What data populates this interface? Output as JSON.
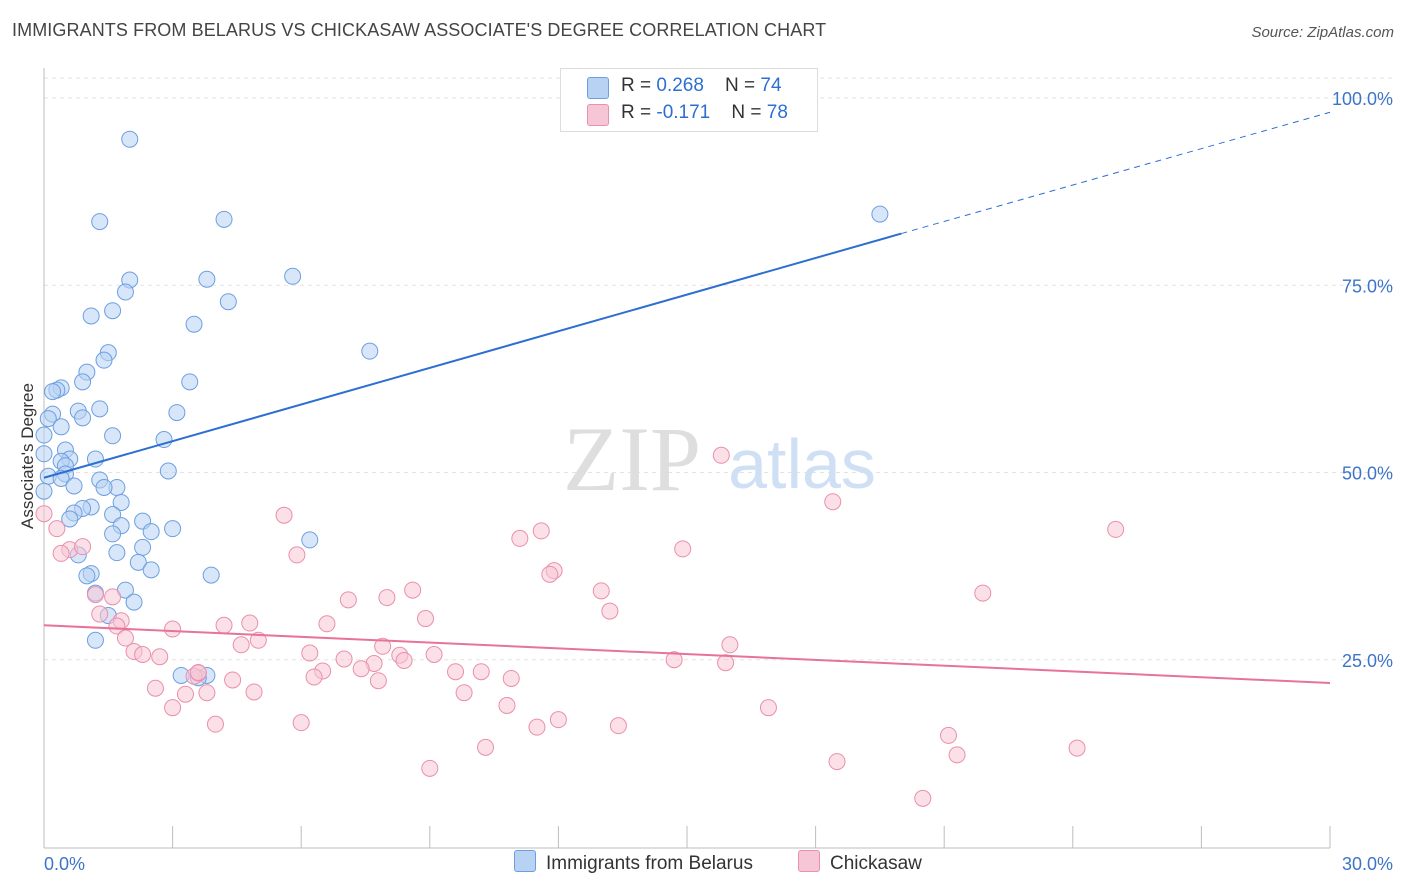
{
  "header": {
    "title": "IMMIGRANTS FROM BELARUS VS CHICKASAW ASSOCIATE'S DEGREE CORRELATION CHART",
    "source": "Source: ZipAtlas.com"
  },
  "watermark": {
    "zip": "ZIP",
    "atlas": "atlas"
  },
  "legend_top": [
    {
      "r_label": "R = ",
      "r_value": "0.268",
      "n_label": "N = ",
      "n_value": "74"
    },
    {
      "r_label": "R = ",
      "r_value": "-0.171",
      "n_label": "N = ",
      "n_value": "78"
    }
  ],
  "legend_bottom": [
    {
      "label": "Immigrants from Belarus"
    },
    {
      "label": "Chickasaw"
    }
  ],
  "colors": {
    "blue_fill": "#b8d2f4",
    "blue_stroke": "#6d9fe0",
    "blue_line": "#2d6fd0",
    "pink_fill": "#f7c6d6",
    "pink_stroke": "#ea8fac",
    "pink_line": "#e8729a",
    "tick_label": "#3d74c9",
    "grid": "#e3e3e3"
  },
  "chart_data": {
    "type": "scatter",
    "title": "IMMIGRANTS FROM BELARUS VS CHICKASAW ASSOCIATE'S DEGREE CORRELATION CHART",
    "xlabel": "",
    "ylabel": "Associate's Degree",
    "xlim": [
      0,
      30
    ],
    "ylim": [
      0,
      105
    ],
    "x_tick_labels": [
      "0.0%",
      "30.0%"
    ],
    "y_ticks": [
      25,
      50,
      75,
      100
    ],
    "y_tick_labels": [
      "25.0%",
      "50.0%",
      "75.0%",
      "100.0%"
    ],
    "grid": true,
    "legend_placement": "top-center",
    "series": [
      {
        "name": "Immigrants from Belarus",
        "R": 0.268,
        "N": 74,
        "trend": {
          "x": [
            0,
            20.0,
            30.0
          ],
          "y": [
            49.3,
            81.9,
            98.1
          ],
          "dashed_from_x": 20.0
        },
        "points": [
          [
            2.0,
            94.5
          ],
          [
            1.3,
            83.5
          ],
          [
            4.2,
            83.8
          ],
          [
            2.0,
            75.7
          ],
          [
            1.9,
            74.1
          ],
          [
            3.8,
            75.8
          ],
          [
            5.8,
            76.2
          ],
          [
            4.3,
            72.8
          ],
          [
            1.6,
            71.6
          ],
          [
            1.1,
            70.9
          ],
          [
            3.5,
            69.8
          ],
          [
            7.6,
            66.2
          ],
          [
            1.5,
            66.0
          ],
          [
            1.4,
            65.0
          ],
          [
            19.5,
            84.5
          ],
          [
            1.0,
            63.4
          ],
          [
            3.4,
            62.1
          ],
          [
            0.9,
            62.1
          ],
          [
            0.4,
            61.3
          ],
          [
            0.3,
            61.0
          ],
          [
            0.2,
            60.8
          ],
          [
            1.3,
            58.5
          ],
          [
            0.8,
            58.2
          ],
          [
            3.1,
            58.0
          ],
          [
            0.2,
            57.8
          ],
          [
            0.9,
            57.3
          ],
          [
            0.1,
            57.2
          ],
          [
            0.4,
            56.1
          ],
          [
            0.0,
            55.0
          ],
          [
            1.6,
            54.9
          ],
          [
            2.8,
            54.4
          ],
          [
            0.5,
            53.0
          ],
          [
            0.0,
            52.5
          ],
          [
            1.2,
            51.8
          ],
          [
            0.6,
            51.8
          ],
          [
            0.4,
            51.5
          ],
          [
            0.5,
            50.9
          ],
          [
            2.9,
            50.2
          ],
          [
            0.5,
            49.8
          ],
          [
            0.1,
            49.5
          ],
          [
            0.4,
            49.2
          ],
          [
            1.3,
            49.0
          ],
          [
            0.7,
            48.2
          ],
          [
            1.7,
            48.0
          ],
          [
            0.0,
            47.5
          ],
          [
            1.4,
            48.0
          ],
          [
            1.8,
            46.0
          ],
          [
            1.1,
            45.4
          ],
          [
            0.9,
            45.2
          ],
          [
            0.7,
            44.6
          ],
          [
            1.6,
            44.4
          ],
          [
            0.6,
            43.8
          ],
          [
            2.3,
            43.5
          ],
          [
            1.8,
            42.9
          ],
          [
            3.0,
            42.5
          ],
          [
            2.5,
            42.1
          ],
          [
            1.6,
            41.8
          ],
          [
            6.2,
            41.0
          ],
          [
            2.3,
            40.0
          ],
          [
            1.7,
            39.3
          ],
          [
            0.8,
            39.0
          ],
          [
            2.2,
            38.0
          ],
          [
            2.5,
            37.0
          ],
          [
            1.1,
            36.5
          ],
          [
            3.9,
            36.3
          ],
          [
            1.0,
            36.2
          ],
          [
            1.9,
            34.3
          ],
          [
            1.2,
            33.9
          ],
          [
            2.1,
            32.7
          ],
          [
            1.5,
            30.9
          ],
          [
            1.2,
            27.6
          ],
          [
            3.2,
            22.9
          ],
          [
            3.8,
            22.9
          ],
          [
            3.6,
            22.6
          ]
        ]
      },
      {
        "name": "Chickasaw",
        "R": -0.171,
        "N": 78,
        "trend": {
          "x": [
            0,
            30.0
          ],
          "y": [
            29.6,
            21.9
          ]
        },
        "points": [
          [
            0.0,
            44.5
          ],
          [
            0.3,
            42.5
          ],
          [
            15.8,
            52.3
          ],
          [
            18.4,
            46.1
          ],
          [
            5.6,
            44.3
          ],
          [
            11.6,
            42.2
          ],
          [
            25.0,
            42.4
          ],
          [
            11.1,
            41.2
          ],
          [
            0.6,
            39.7
          ],
          [
            0.9,
            40.1
          ],
          [
            14.9,
            39.8
          ],
          [
            5.9,
            39.0
          ],
          [
            0.4,
            39.2
          ],
          [
            11.9,
            36.9
          ],
          [
            11.8,
            36.4
          ],
          [
            13.0,
            34.2
          ],
          [
            21.9,
            33.9
          ],
          [
            8.6,
            34.3
          ],
          [
            8.0,
            33.3
          ],
          [
            1.2,
            33.7
          ],
          [
            1.6,
            33.4
          ],
          [
            7.1,
            33.0
          ],
          [
            13.2,
            31.5
          ],
          [
            1.3,
            31.1
          ],
          [
            8.9,
            30.5
          ],
          [
            1.8,
            30.2
          ],
          [
            6.6,
            29.8
          ],
          [
            4.8,
            29.9
          ],
          [
            4.2,
            29.6
          ],
          [
            1.7,
            29.5
          ],
          [
            3.0,
            29.1
          ],
          [
            1.9,
            27.9
          ],
          [
            5.0,
            27.6
          ],
          [
            4.6,
            27.0
          ],
          [
            7.9,
            26.8
          ],
          [
            16.0,
            27.0
          ],
          [
            2.1,
            26.1
          ],
          [
            2.3,
            25.7
          ],
          [
            6.2,
            25.9
          ],
          [
            2.7,
            25.4
          ],
          [
            9.1,
            25.7
          ],
          [
            8.3,
            25.6
          ],
          [
            7.0,
            25.1
          ],
          [
            8.4,
            24.9
          ],
          [
            14.7,
            25.0
          ],
          [
            15.9,
            24.6
          ],
          [
            7.7,
            24.5
          ],
          [
            7.4,
            23.8
          ],
          [
            6.5,
            23.5
          ],
          [
            9.6,
            23.4
          ],
          [
            10.2,
            23.4
          ],
          [
            3.6,
            23.2
          ],
          [
            3.5,
            22.8
          ],
          [
            6.3,
            22.7
          ],
          [
            10.9,
            22.5
          ],
          [
            4.4,
            22.3
          ],
          [
            7.8,
            22.2
          ],
          [
            2.6,
            21.2
          ],
          [
            3.3,
            20.4
          ],
          [
            3.8,
            20.6
          ],
          [
            4.9,
            20.7
          ],
          [
            9.8,
            20.6
          ],
          [
            10.8,
            18.9
          ],
          [
            3.0,
            18.6
          ],
          [
            16.9,
            18.6
          ],
          [
            12.0,
            17.0
          ],
          [
            6.0,
            16.6
          ],
          [
            4.0,
            16.4
          ],
          [
            11.5,
            16.0
          ],
          [
            13.4,
            16.2
          ],
          [
            21.1,
            14.9
          ],
          [
            10.3,
            13.3
          ],
          [
            24.1,
            13.2
          ],
          [
            21.3,
            12.3
          ],
          [
            18.5,
            11.4
          ],
          [
            9.0,
            10.5
          ],
          [
            20.5,
            6.5
          ],
          [
            3.6,
            23.3
          ]
        ]
      }
    ]
  }
}
